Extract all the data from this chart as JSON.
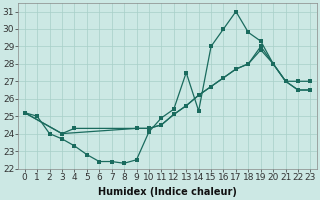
{
  "xlabel": "Humidex (Indice chaleur)",
  "xlim": [
    -0.5,
    23.5
  ],
  "ylim": [
    22,
    31.5
  ],
  "bg_color": "#cce8e4",
  "grid_color": "#a8cfc8",
  "line_color": "#1a6b5e",
  "line1_x": [
    0,
    1,
    2,
    3,
    4,
    5,
    6,
    7,
    8,
    9,
    10,
    11,
    12,
    13,
    14,
    15,
    16,
    17,
    18,
    19,
    20,
    21,
    22,
    23
  ],
  "line1_y": [
    25.2,
    25.0,
    24.0,
    23.7,
    23.3,
    22.8,
    22.4,
    22.4,
    22.3,
    22.5,
    24.1,
    24.9,
    25.4,
    27.5,
    25.3,
    29.0,
    30.0,
    31.0,
    29.8,
    29.3,
    28.0,
    27.0,
    27.0,
    27.0
  ],
  "line2_x": [
    0,
    3,
    4,
    9,
    10,
    11,
    12,
    13,
    14,
    15,
    16,
    17,
    18,
    19,
    20,
    21,
    22,
    23
  ],
  "line2_y": [
    25.2,
    24.0,
    24.3,
    24.3,
    24.3,
    24.5,
    25.1,
    25.6,
    26.2,
    26.7,
    27.2,
    27.7,
    28.0,
    28.8,
    28.0,
    27.0,
    26.5,
    26.5
  ],
  "line3_x": [
    0,
    3,
    9,
    10,
    11,
    12,
    13,
    14,
    15,
    16,
    17,
    18,
    19,
    20,
    21,
    22,
    23
  ],
  "line3_y": [
    25.2,
    24.0,
    24.3,
    24.3,
    24.5,
    25.1,
    25.6,
    26.2,
    26.7,
    27.2,
    27.7,
    28.0,
    29.0,
    28.0,
    27.0,
    26.5,
    26.5
  ],
  "xtick_labels": [
    "0",
    "1",
    "2",
    "3",
    "4",
    "5",
    "6",
    "7",
    "8",
    "9",
    "10",
    "11",
    "12",
    "13",
    "14",
    "15",
    "16",
    "17",
    "18",
    "19",
    "20",
    "21",
    "22",
    "23"
  ],
  "ytick_labels": [
    "22",
    "23",
    "24",
    "25",
    "26",
    "27",
    "28",
    "29",
    "30",
    "31"
  ],
  "fontsize": 6.5
}
